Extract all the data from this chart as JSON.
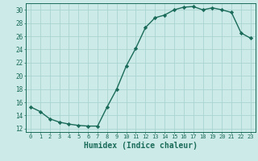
{
  "x": [
    0,
    1,
    2,
    3,
    4,
    5,
    6,
    7,
    8,
    9,
    10,
    11,
    12,
    13,
    14,
    15,
    16,
    17,
    18,
    19,
    20,
    21,
    22,
    23
  ],
  "y": [
    15.3,
    14.6,
    13.5,
    13.0,
    12.7,
    12.5,
    12.4,
    12.4,
    15.3,
    18.0,
    21.5,
    24.2,
    27.3,
    28.8,
    29.2,
    30.0,
    30.4,
    30.5,
    30.0,
    30.3,
    30.0,
    29.6,
    26.5,
    25.7
  ],
  "line_color": "#1a6b5a",
  "marker": "D",
  "marker_size": 2.2,
  "bg_color": "#cceae7",
  "grid_color": "#aad4d0",
  "tick_color": "#1a6b5a",
  "xlabel": "Humidex (Indice chaleur)",
  "xlabel_fontsize": 7,
  "ylabel_ticks": [
    12,
    14,
    16,
    18,
    20,
    22,
    24,
    26,
    28,
    30
  ],
  "ylim": [
    11.5,
    31.0
  ],
  "xlim": [
    -0.5,
    23.5
  ],
  "linewidth": 1.0
}
